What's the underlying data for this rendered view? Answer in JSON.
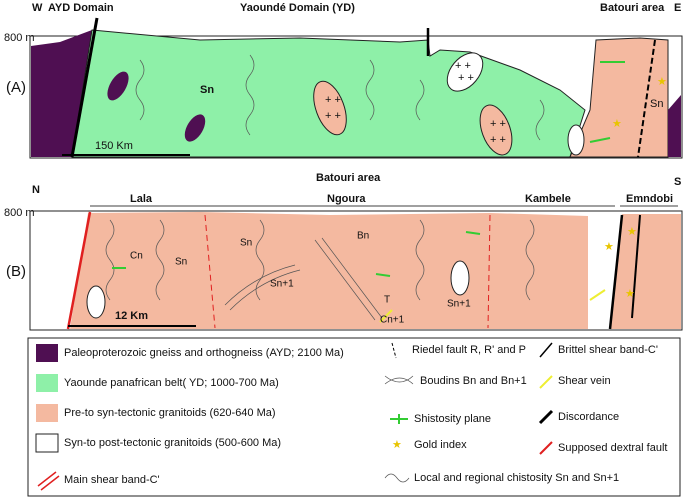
{
  "panel_a": {
    "label": "(A)",
    "west": "W",
    "east": "E",
    "elevation": "800 m",
    "domains": [
      "AYD Domain",
      "Yaoundé Domain (YD)",
      "Batouri area"
    ],
    "foliation": [
      "Sn",
      "Sn"
    ],
    "scale": "150 Km"
  },
  "panel_b": {
    "label": "(B)",
    "north": "N",
    "south": "S",
    "title": "Batouri area",
    "elevation": "800 m",
    "sections": [
      "Lala",
      "Ngoura",
      "Kambele",
      "Emndobi"
    ],
    "annotations": [
      "Cn",
      "Sn",
      "Sn",
      "Bn",
      "Sn+1",
      "T",
      "Cn+1",
      "Sn+1"
    ],
    "scale": "12 Km"
  },
  "legend": {
    "items": [
      "Paleoproterozoic gneiss and orthogneiss (AYD; 2100 Ma)",
      "Yaounde panafrican belt( YD; 1000-700 Ma)",
      "Pre-to syn-tectonic granitoids (620-640 Ma)",
      "Syn-to post-tectonic granitoids (500-600 Ma)",
      "Main shear band-C'",
      "Riedel fault R, R' and P",
      "Boudins Bn and Bn+1",
      "Shistosity plane",
      "Gold index",
      "Local and regional chistosity Sn and Sn+1",
      "Brittel shear band-C'",
      "Shear vein",
      "Discordance",
      "Supposed dextral fault"
    ]
  }
}
